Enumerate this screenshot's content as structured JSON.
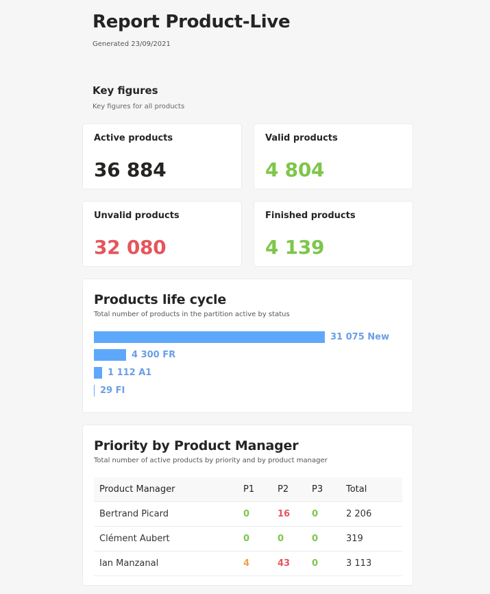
{
  "report": {
    "title": "Report Product-Live",
    "generated": "Generated 23/09/2021"
  },
  "key_figures": {
    "title": "Key figures",
    "subtitle": "Key figures for all products",
    "cards": [
      {
        "label": "Active products",
        "value": "36 884",
        "color": "#252423"
      },
      {
        "label": "Valid products",
        "value": "4 804",
        "color": "#7dc64a"
      },
      {
        "label": "Unvalid products",
        "value": "32 080",
        "color": "#e5555d"
      },
      {
        "label": "Finished products",
        "value": "4 139",
        "color": "#7dc64a"
      }
    ]
  },
  "life_cycle": {
    "title": "Products life cycle",
    "subtitle": "Total number of products in the partition active by status",
    "bar_color": "#5ea8fb",
    "label_color": "#6a9ee6",
    "bars": [
      {
        "label": "31 075 New",
        "value": 31075,
        "status": "New"
      },
      {
        "label": "4 300 FR",
        "value": 4300,
        "status": "FR"
      },
      {
        "label": "1 112 A1",
        "value": 1112,
        "status": "A1"
      },
      {
        "label": "29 FI",
        "value": 29,
        "status": "FI"
      }
    ]
  },
  "priority": {
    "title": "Priority by Product Manager",
    "subtitle": "Total number of active products by priority and by product manager",
    "columns": [
      "Product Manager",
      "P1",
      "P2",
      "P3",
      "Total"
    ],
    "rows": [
      {
        "name": "Bertrand Picard",
        "p1": "0",
        "p2": "16",
        "p3": "0",
        "total": "2 206",
        "p1_color": "#7dc64a",
        "p2_color": "#e5555d",
        "p3_color": "#7dc64a"
      },
      {
        "name": "Clément Aubert",
        "p1": "0",
        "p2": "0",
        "p3": "0",
        "total": "319",
        "p1_color": "#7dc64a",
        "p2_color": "#7dc64a",
        "p3_color": "#7dc64a"
      },
      {
        "name": "Ian Manzanal",
        "p1": "4",
        "p2": "43",
        "p3": "0",
        "total": "3 113",
        "p1_color": "#f0a04b",
        "p2_color": "#e5555d",
        "p3_color": "#7dc64a"
      }
    ]
  },
  "chart_data": {
    "type": "bar",
    "orientation": "horizontal",
    "title": "Products life cycle",
    "subtitle": "Total number of products in the partition active by status",
    "categories": [
      "New",
      "FR",
      "A1",
      "FI"
    ],
    "values": [
      31075,
      4300,
      1112,
      29
    ],
    "data_labels": [
      "31 075 New",
      "4 300 FR",
      "1 112 A1",
      "29 FI"
    ],
    "xlabel": "",
    "ylabel": "",
    "grid": false,
    "legend": "none"
  }
}
